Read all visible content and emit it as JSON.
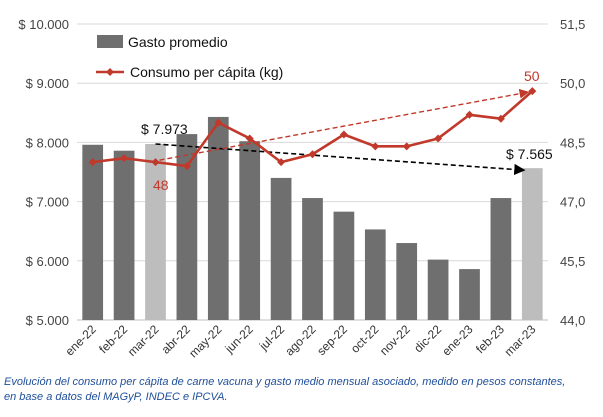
{
  "chart_data": {
    "type": "bar-line-combo",
    "categories": [
      "ene-22",
      "feb-22",
      "mar-22",
      "abr-22",
      "may-22",
      "jun-22",
      "jul-22",
      "ago-22",
      "sep-22",
      "oct-22",
      "nov-22",
      "dic-22",
      "ene-23",
      "feb-23",
      "mar-23"
    ],
    "series": [
      {
        "name": "Gasto promedio",
        "type": "bar",
        "axis": "left",
        "values": [
          7960,
          7860,
          7973,
          8140,
          8430,
          8020,
          7400,
          7060,
          6830,
          6530,
          6300,
          6020,
          5860,
          7060,
          7565
        ],
        "highlighted_indices": [
          2,
          14
        ]
      },
      {
        "name": "Consumo per cápita (kg)",
        "type": "line",
        "axis": "right",
        "values": [
          48.0,
          48.1,
          48.0,
          47.9,
          49.0,
          48.6,
          48.0,
          48.2,
          48.7,
          48.4,
          48.4,
          48.6,
          49.2,
          49.1,
          49.8
        ]
      }
    ],
    "y_left": {
      "ylim": [
        5000,
        10000
      ],
      "ticks": [
        5000,
        6000,
        7000,
        8000,
        9000,
        10000
      ],
      "tick_labels": [
        "$ 5.000",
        "$ 6.000",
        "$ 7.000",
        "$ 8.000",
        "$ 9.000",
        "$ 10.000"
      ]
    },
    "y_right": {
      "ylim": [
        44.0,
        51.5
      ],
      "ticks": [
        44.0,
        45.5,
        47.0,
        48.5,
        50.0,
        51.5
      ],
      "tick_labels": [
        "44,0",
        "45,5",
        "47,0",
        "48,5",
        "50,0",
        "51,5"
      ]
    },
    "annotations": {
      "bar_start_label": "$ 7.973",
      "bar_end_label": "$ 7.565",
      "line_start_label": "48",
      "line_end_label": "50"
    },
    "legend": {
      "placement": "top-left"
    },
    "colors": {
      "bar": "#6f6f6f",
      "bar_highlight": "#bdbdbd",
      "line": "#c0392b",
      "trend_red": "#c0392b",
      "trend_black": "#000000"
    }
  },
  "caption": {
    "line1": "Evolución del consumo per cápita de carne vacuna y gasto medio mensual asociado, medido en pesos constantes,",
    "line2": "en base a datos del MAGyP, INDEC e IPCVA."
  }
}
